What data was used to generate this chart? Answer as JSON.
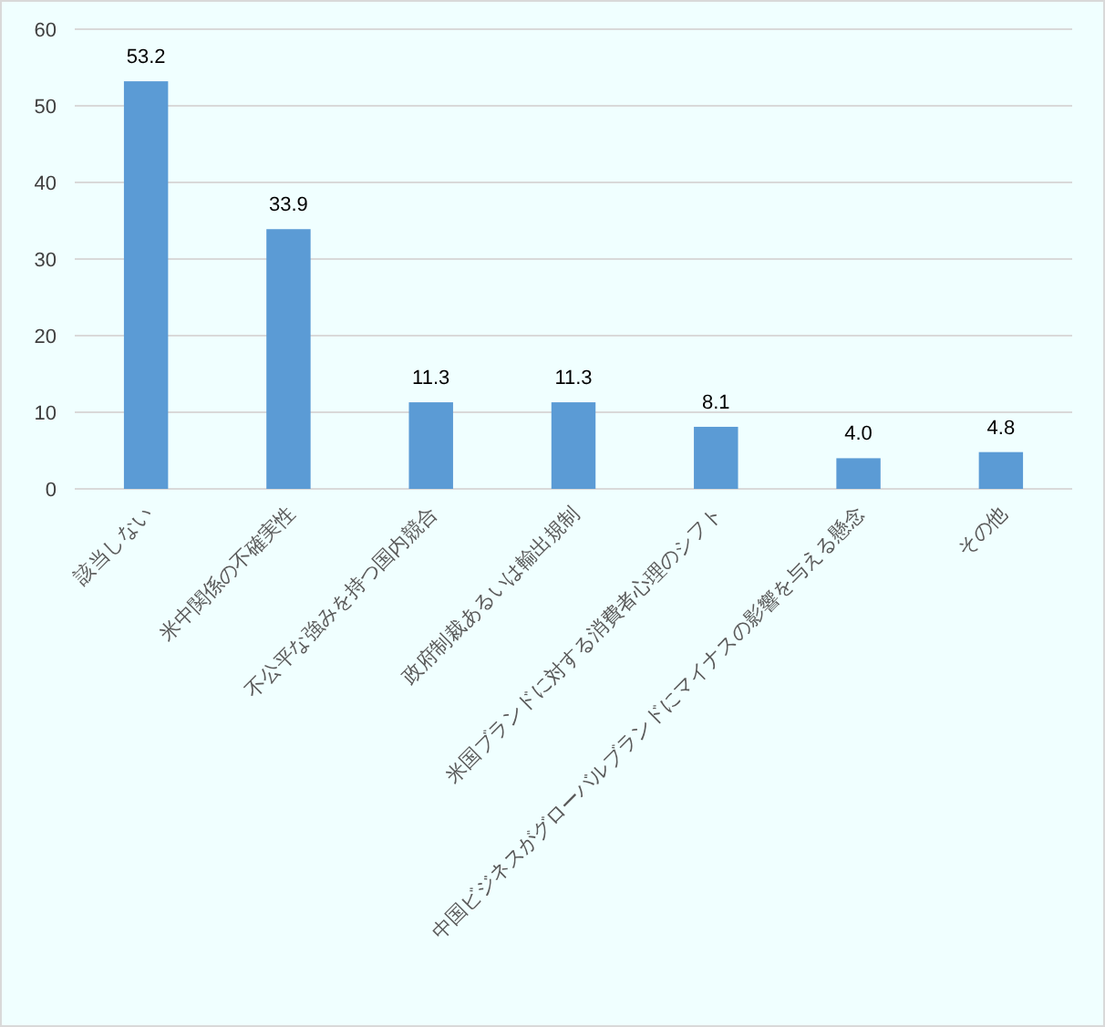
{
  "chart_data": {
    "type": "bar",
    "categories": [
      "該当しない",
      "米中関係の不確実性",
      "不公平な強みを持つ国内競合",
      "政府制裁あるいは輸出規制",
      "米国ブランドに対する消費者心理のシフト",
      "中国ビジネスがグローバルブランドにマイナスの影響を与える懸念",
      "その他"
    ],
    "values": [
      53.2,
      33.9,
      11.3,
      11.3,
      8.1,
      4.0,
      4.8
    ],
    "value_labels": [
      "53.2",
      "33.9",
      "11.3",
      "11.3",
      "8.1",
      "4.0",
      "4.8"
    ],
    "color": "#5b9bd5",
    "ylim": [
      0,
      60
    ],
    "yticks": [
      0,
      10,
      20,
      30,
      40,
      50,
      60
    ],
    "grid": "y"
  }
}
